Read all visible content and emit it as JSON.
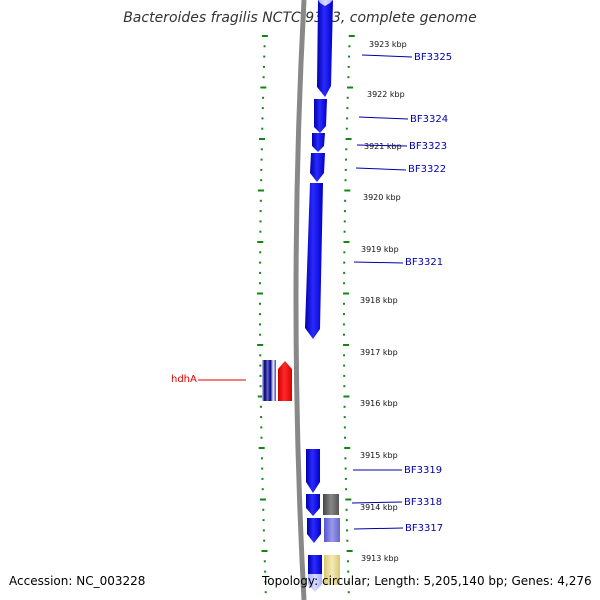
{
  "title": "Bacteroides fragilis NCTC 9343, complete genome",
  "accession": "Accession: NC_003228",
  "summary": "Topology: circular; Length: 5,205,140 bp; Genes: 4,276",
  "scale": {
    "unit": "kbp",
    "ticks": [
      3923,
      3922,
      3921,
      3920,
      3919,
      3918,
      3917,
      3916,
      3915,
      3914,
      3913
    ]
  },
  "genes_right": [
    {
      "name": "BF3325",
      "color": "#0000ff"
    },
    {
      "name": "BF3324",
      "color": "#0000ff"
    },
    {
      "name": "BF3323",
      "color": "#0000ff"
    },
    {
      "name": "BF3322",
      "color": "#0000ff"
    },
    {
      "name": "BF3321",
      "color": "#0000ff"
    },
    {
      "name": "BF3319",
      "color": "#0000ff"
    },
    {
      "name": "BF3318",
      "color": "#0000ff"
    },
    {
      "name": "BF3317",
      "color": "#0000ff"
    }
  ],
  "genes_left": [
    {
      "name": "hdhA",
      "color": "#ff0000"
    }
  ],
  "colors": {
    "backbone": "#888888",
    "tick": "#118811",
    "gene_forward": "#0000ee",
    "gene_highlight": "#ff0000",
    "gene_gray": "#666666",
    "gene_lilac": "#7777dd",
    "gene_cream": "#e8dc90"
  }
}
